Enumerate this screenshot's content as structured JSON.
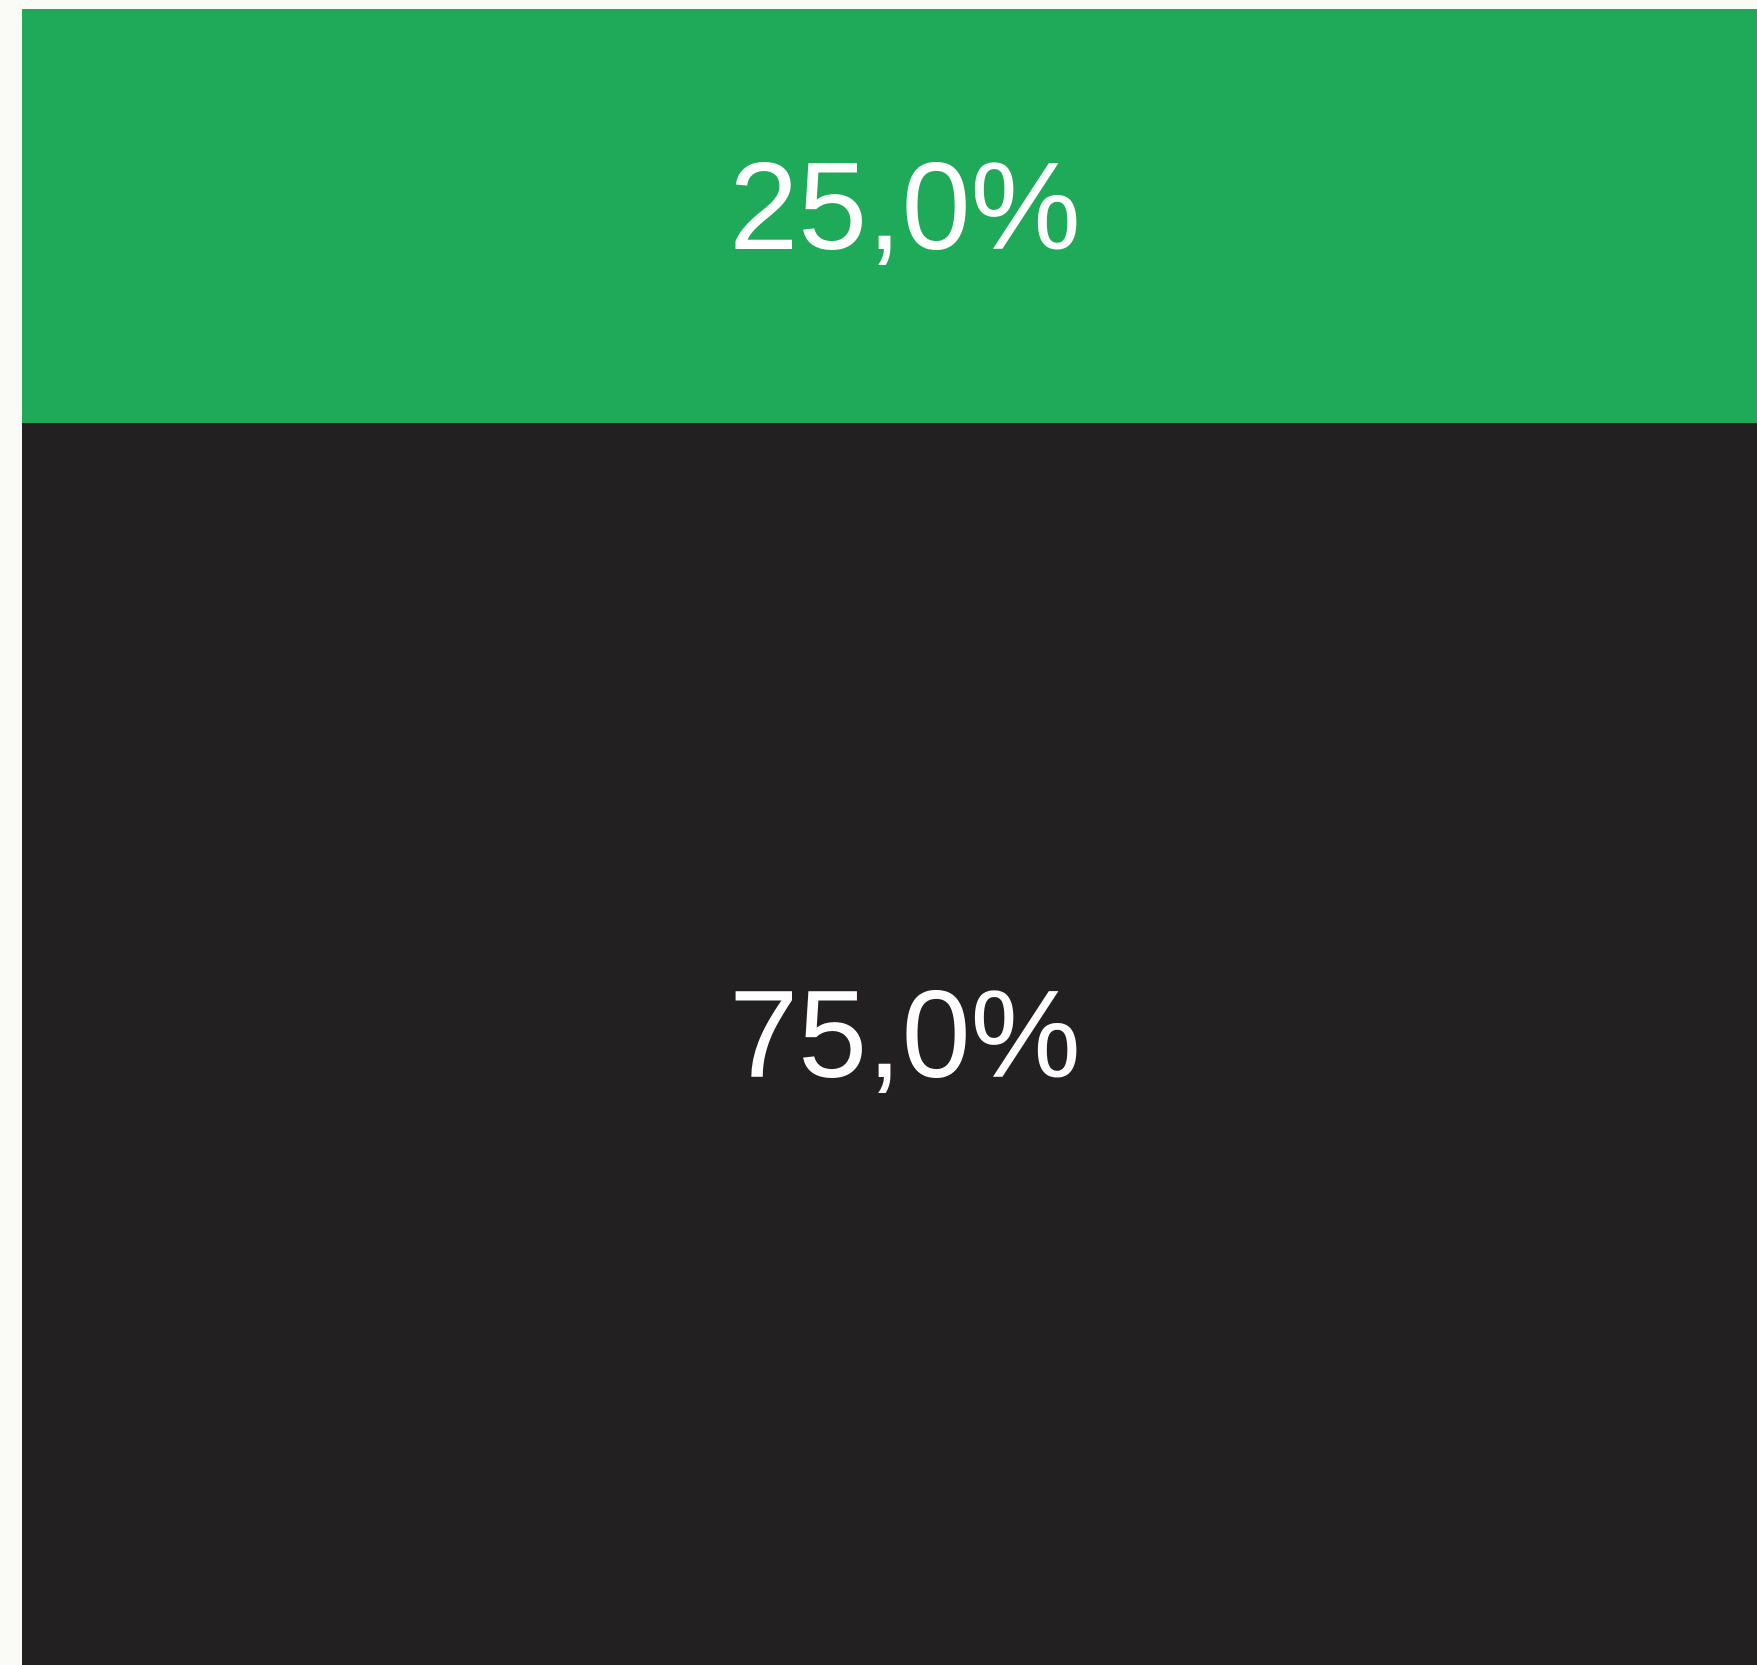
{
  "chart_data": {
    "type": "bar",
    "stacked": true,
    "series": [
      {
        "color": "#1faa59",
        "values": [
          25
        ],
        "value_labels": [
          "25,0%"
        ]
      },
      {
        "color": "#232022",
        "values": [
          75
        ],
        "value_labels": [
          "75,0%"
        ]
      }
    ]
  }
}
